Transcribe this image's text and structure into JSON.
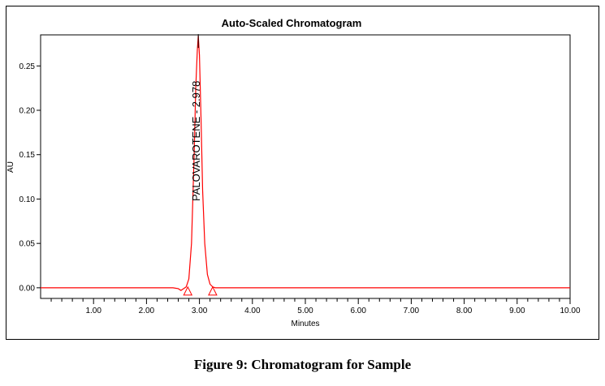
{
  "caption": "Figure 9: Chromatogram for Sample",
  "colors": {
    "trace": "#ff0000",
    "axis": "#000000",
    "frame": "#000000"
  },
  "chart_data": {
    "type": "line",
    "title": "Auto-Scaled Chromatogram",
    "xlabel": "Minutes",
    "ylabel": "AU",
    "xlim": [
      0.0,
      10.0
    ],
    "ylim": [
      -0.012,
      0.285
    ],
    "x_ticks": [
      1.0,
      2.0,
      3.0,
      4.0,
      5.0,
      6.0,
      7.0,
      8.0,
      9.0,
      10.0
    ],
    "x_tick_labels": [
      "1.00",
      "2.00",
      "3.00",
      "4.00",
      "5.00",
      "6.00",
      "7.00",
      "8.00",
      "9.00",
      "10.00"
    ],
    "x_minor_step": 0.2,
    "y_ticks": [
      0.0,
      0.05,
      0.1,
      0.15,
      0.2,
      0.25
    ],
    "y_tick_labels": [
      "0.00",
      "0.05",
      "0.10",
      "0.15",
      "0.20",
      "0.25"
    ],
    "grid": false,
    "series": [
      {
        "x": [
          0.0,
          1.0,
          2.0,
          2.5,
          2.6,
          2.65,
          2.7,
          2.75,
          2.8,
          2.85,
          2.9,
          2.93,
          2.96,
          2.978,
          3.0,
          3.03,
          3.06,
          3.1,
          3.15,
          3.2,
          3.25,
          3.3,
          3.5,
          4.0,
          5.0,
          6.0,
          7.0,
          8.0,
          9.0,
          10.0
        ],
        "y": [
          0.0,
          0.0,
          0.0,
          0.0,
          -0.001,
          -0.003,
          -0.001,
          0.001,
          0.01,
          0.05,
          0.15,
          0.225,
          0.268,
          0.284,
          0.262,
          0.19,
          0.11,
          0.05,
          0.015,
          0.004,
          0.001,
          0.0,
          0.0,
          0.0,
          0.0,
          0.0,
          0.0,
          0.0,
          0.0,
          0.0
        ]
      }
    ],
    "annotations": [
      {
        "text": "PALOVAROTENE - 2.978",
        "x": 2.978,
        "orientation": "vertical"
      }
    ],
    "integration_markers": [
      {
        "x": 2.78,
        "y": 0.0,
        "shape": "triangle"
      },
      {
        "x": 3.25,
        "y": 0.0,
        "shape": "triangle"
      }
    ]
  }
}
